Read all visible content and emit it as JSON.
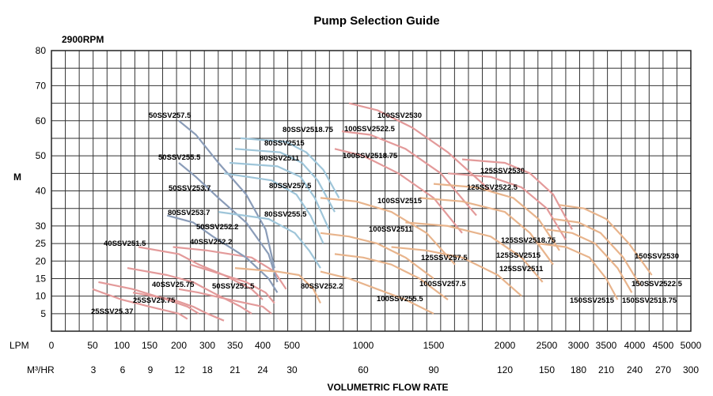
{
  "chart_data": {
    "type": "line",
    "title": "Pump Selection Guide",
    "subtitle": "2900RPM",
    "ylabel": "M",
    "xlabel": "VOLUMETRIC FLOW RATE",
    "ylim": [
      0,
      80
    ],
    "y_ticks": [
      "5",
      "10",
      "15",
      "20",
      "25",
      "30",
      "40",
      "50",
      "60",
      "70",
      "80"
    ],
    "x_axis_lpm": {
      "label": "LPM",
      "ticks": [
        "0",
        "50",
        "100",
        "150",
        "200",
        "300",
        "350",
        "400",
        "500",
        "1000",
        "1500",
        "2000",
        "2500",
        "3000",
        "3500",
        "4000",
        "4500",
        "5000"
      ]
    },
    "x_axis_m3hr": {
      "label": "M³/HR",
      "ticks": [
        "3",
        "6",
        "9",
        "12",
        "18",
        "21",
        "24",
        "30",
        "60",
        "90",
        "120",
        "150",
        "180",
        "210",
        "240",
        "270",
        "300"
      ]
    },
    "grid": true,
    "series": [
      {
        "name": "25SSV25.37",
        "color": "#e39a9a",
        "points": [
          [
            50,
            12
          ],
          [
            100,
            9
          ],
          [
            150,
            7
          ],
          [
            200,
            5
          ],
          [
            230,
            3.5
          ]
        ]
      },
      {
        "name": "25SSV25.75",
        "color": "#e39a9a",
        "points": [
          [
            60,
            14
          ],
          [
            120,
            12
          ],
          [
            180,
            9
          ],
          [
            230,
            7
          ],
          [
            270,
            5
          ]
        ]
      },
      {
        "name": "40SSV25.75",
        "color": "#e39a9a",
        "points": [
          [
            120,
            11
          ],
          [
            190,
            9
          ],
          [
            250,
            7
          ],
          [
            300,
            5
          ],
          [
            330,
            3
          ]
        ]
      },
      {
        "name": "40SSV251.5",
        "color": "#e39a9a",
        "points": [
          [
            110,
            18
          ],
          [
            180,
            16
          ],
          [
            250,
            14
          ],
          [
            310,
            11
          ],
          [
            360,
            7
          ],
          [
            380,
            5
          ]
        ]
      },
      {
        "name": "40SSV252.2",
        "color": "#e39a9a",
        "points": [
          [
            130,
            24
          ],
          [
            200,
            22
          ],
          [
            270,
            19
          ],
          [
            330,
            16
          ],
          [
            380,
            12
          ],
          [
            400,
            9
          ]
        ]
      },
      {
        "name": "50SSV251.5",
        "color": "#e39a9a",
        "points": [
          [
            200,
            12
          ],
          [
            270,
            11
          ],
          [
            340,
            9
          ],
          [
            400,
            7
          ],
          [
            430,
            5
          ]
        ]
      },
      {
        "name": "50SSV252.2",
        "color": "#e39a9a",
        "points": [
          [
            240,
            19
          ],
          [
            310,
            17
          ],
          [
            370,
            14
          ],
          [
            410,
            11
          ],
          [
            440,
            8
          ]
        ]
      },
      {
        "name": "80SSV253.7",
        "color": "#e39a9a",
        "points": [
          [
            190,
            24
          ],
          [
            300,
            23
          ],
          [
            380,
            21
          ],
          [
            440,
            17
          ],
          [
            480,
            12
          ]
        ]
      },
      {
        "name": "50SSV253.7",
        "color": "#8a9cb8",
        "points": [
          [
            180,
            33
          ],
          [
            250,
            31
          ],
          [
            310,
            27
          ],
          [
            370,
            21
          ],
          [
            420,
            15
          ],
          [
            450,
            11
          ]
        ]
      },
      {
        "name": "50SSV255.5",
        "color": "#8a9cb8",
        "points": [
          [
            200,
            48
          ],
          [
            260,
            44
          ],
          [
            320,
            38
          ],
          [
            370,
            31
          ],
          [
            420,
            22
          ],
          [
            450,
            14
          ]
        ]
      },
      {
        "name": "50SSV257.5",
        "color": "#8a9cb8",
        "points": [
          [
            200,
            60
          ],
          [
            260,
            56
          ],
          [
            320,
            48
          ],
          [
            370,
            39
          ],
          [
            410,
            29
          ],
          [
            440,
            18
          ]
        ]
      },
      {
        "name": "80SSV252.2",
        "color": "#e8b48c",
        "points": [
          [
            350,
            18
          ],
          [
            450,
            17
          ],
          [
            550,
            16
          ],
          [
            650,
            12
          ],
          [
            700,
            8
          ]
        ]
      },
      {
        "name": "80SSV255.5",
        "color": "#9ec5d9",
        "points": [
          [
            320,
            34
          ],
          [
            420,
            32
          ],
          [
            520,
            28
          ],
          [
            620,
            23
          ],
          [
            700,
            18
          ]
        ]
      },
      {
        "name": "80SSV257.5",
        "color": "#9ec5d9",
        "points": [
          [
            330,
            45
          ],
          [
            430,
            43
          ],
          [
            530,
            39
          ],
          [
            630,
            33
          ],
          [
            720,
            25
          ]
        ]
      },
      {
        "name": "80SSV2511",
        "color": "#9ec5d9",
        "points": [
          [
            340,
            48
          ],
          [
            450,
            47
          ],
          [
            560,
            44
          ],
          [
            660,
            38
          ],
          [
            760,
            29
          ]
        ]
      },
      {
        "name": "80SSV2515",
        "color": "#9ec5d9",
        "points": [
          [
            350,
            52
          ],
          [
            460,
            51
          ],
          [
            570,
            48
          ],
          [
            680,
            43
          ],
          [
            800,
            34
          ]
        ]
      },
      {
        "name": "80SSV2518.75",
        "color": "#9ec5d9",
        "points": [
          [
            360,
            55
          ],
          [
            480,
            54
          ],
          [
            600,
            51
          ],
          [
            720,
            46
          ],
          [
            830,
            38
          ]
        ]
      },
      {
        "name": "100SSV255.5",
        "color": "#e8b48c",
        "points": [
          [
            700,
            17
          ],
          [
            900,
            15
          ],
          [
            1100,
            12
          ],
          [
            1300,
            9
          ],
          [
            1500,
            5
          ]
        ]
      },
      {
        "name": "100SSV257.5",
        "color": "#e8b48c",
        "points": [
          [
            800,
            22
          ],
          [
            1000,
            21
          ],
          [
            1200,
            19
          ],
          [
            1400,
            15
          ],
          [
            1600,
            9
          ]
        ]
      },
      {
        "name": "100SSV2511",
        "color": "#e8b48c",
        "points": [
          [
            700,
            28
          ],
          [
            900,
            27
          ],
          [
            1100,
            25
          ],
          [
            1300,
            21
          ],
          [
            1500,
            15
          ]
        ]
      },
      {
        "name": "100SSV2515",
        "color": "#e8b48c",
        "points": [
          [
            700,
            38
          ],
          [
            950,
            37
          ],
          [
            1200,
            34
          ],
          [
            1450,
            28
          ],
          [
            1650,
            19
          ]
        ]
      },
      {
        "name": "100SSV2518.75",
        "color": "#e39a9a",
        "points": [
          [
            800,
            52
          ],
          [
            1000,
            50
          ],
          [
            1250,
            45
          ],
          [
            1500,
            38
          ],
          [
            1700,
            28
          ]
        ]
      },
      {
        "name": "100SSV2522.5",
        "color": "#e39a9a",
        "points": [
          [
            850,
            57
          ],
          [
            1050,
            56
          ],
          [
            1300,
            52
          ],
          [
            1550,
            45
          ],
          [
            1800,
            33
          ]
        ]
      },
      {
        "name": "100SSV2530",
        "color": "#e39a9a",
        "points": [
          [
            900,
            65
          ],
          [
            1100,
            63
          ],
          [
            1350,
            58
          ],
          [
            1600,
            51
          ],
          [
            1900,
            40
          ]
        ]
      },
      {
        "name": "125SSV257.5",
        "color": "#e8b48c",
        "points": [
          [
            1200,
            24
          ],
          [
            1450,
            23
          ],
          [
            1700,
            21
          ],
          [
            1950,
            16
          ],
          [
            2200,
            10
          ]
        ]
      },
      {
        "name": "125SSV2511",
        "color": "#e8b48c",
        "points": [
          [
            1300,
            31
          ],
          [
            1600,
            30
          ],
          [
            1900,
            27
          ],
          [
            2200,
            21
          ],
          [
            2450,
            14
          ]
        ]
      },
      {
        "name": "125SSV2515",
        "color": "#e8b48c",
        "points": [
          [
            1400,
            38
          ],
          [
            1700,
            37
          ],
          [
            2000,
            34
          ],
          [
            2300,
            28
          ],
          [
            2600,
            19
          ]
        ]
      },
      {
        "name": "125SSV2518.75",
        "color": "#e8b48c",
        "points": [
          [
            1500,
            42
          ],
          [
            1800,
            41
          ],
          [
            2100,
            38
          ],
          [
            2400,
            32
          ],
          [
            2700,
            23
          ]
        ]
      },
      {
        "name": "125SSV2522.5",
        "color": "#e39a9a",
        "points": [
          [
            1600,
            45
          ],
          [
            1900,
            44
          ],
          [
            2200,
            41
          ],
          [
            2500,
            35
          ],
          [
            2800,
            26
          ]
        ]
      },
      {
        "name": "125SSV2530",
        "color": "#e39a9a",
        "points": [
          [
            1700,
            49
          ],
          [
            2000,
            48
          ],
          [
            2300,
            45
          ],
          [
            2600,
            39
          ],
          [
            2900,
            29
          ]
        ]
      },
      {
        "name": "150SSV2515",
        "color": "#e8b48c",
        "points": [
          [
            2400,
            25
          ],
          [
            2800,
            24
          ],
          [
            3200,
            21
          ],
          [
            3500,
            15
          ],
          [
            3700,
            9
          ]
        ]
      },
      {
        "name": "150SSV2518.75",
        "color": "#e8b48c",
        "points": [
          [
            2500,
            29
          ],
          [
            2900,
            28
          ],
          [
            3300,
            25
          ],
          [
            3700,
            18
          ],
          [
            3950,
            11
          ]
        ]
      },
      {
        "name": "150SSV2522.5",
        "color": "#e8b48c",
        "points": [
          [
            2600,
            32
          ],
          [
            3000,
            31
          ],
          [
            3400,
            28
          ],
          [
            3800,
            21
          ],
          [
            4100,
            13
          ]
        ]
      },
      {
        "name": "150SSV2530",
        "color": "#e8b48c",
        "points": [
          [
            2700,
            36
          ],
          [
            3100,
            35
          ],
          [
            3500,
            32
          ],
          [
            3900,
            25
          ],
          [
            4300,
            16
          ]
        ]
      }
    ]
  }
}
